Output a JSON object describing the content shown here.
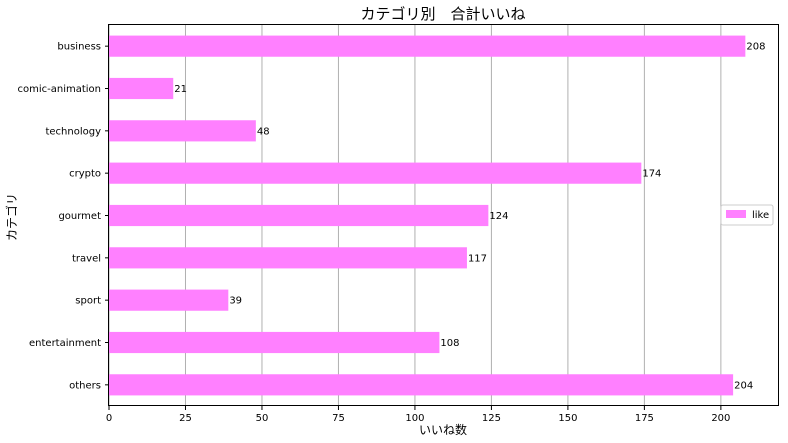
{
  "chart_data": {
    "type": "bar",
    "orientation": "horizontal",
    "title": "カテゴリ別　合計いいね",
    "xlabel": "いいね数",
    "ylabel": "カテゴリ",
    "categories": [
      "business",
      "comic-animation",
      "technology",
      "crypto",
      "gourmet",
      "travel",
      "sport",
      "entertainment",
      "others"
    ],
    "series": [
      {
        "name": "like",
        "values": [
          208,
          21,
          48,
          174,
          124,
          117,
          39,
          108,
          204
        ],
        "color": "#ff80ff"
      }
    ],
    "xlim": [
      0,
      219
    ],
    "xticks": [
      0,
      25,
      50,
      75,
      100,
      125,
      150,
      175,
      200
    ],
    "grid": "vertical",
    "legend_position": "right"
  }
}
